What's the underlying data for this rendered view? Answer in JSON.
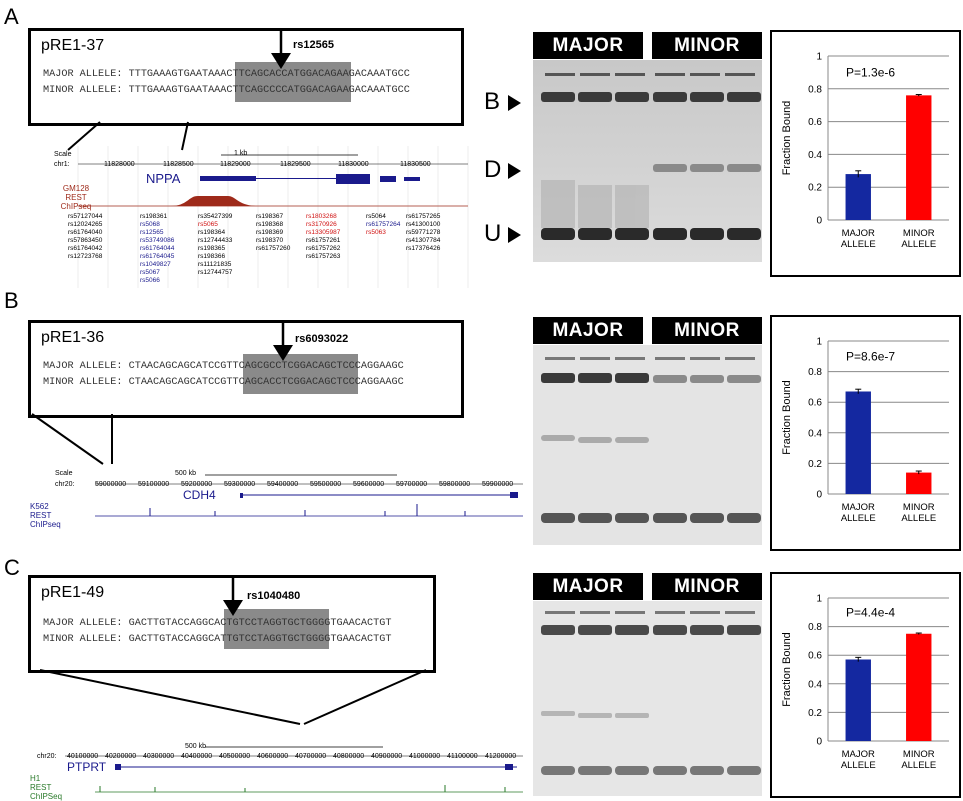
{
  "panels": [
    {
      "letter": "A",
      "region": "pRE1-37",
      "snp": "rs12565",
      "major_prefix": "MAJOR ALLELE: ",
      "minor_prefix": "MINOR ALLELE: ",
      "major_seq": "TTTGAAAGTGAATAAACTTCAGCACCATGGACAGAAGACAAATGCC",
      "minor_seq": "TTTGAAAGTGAATAAACTTCAGCCCCATGGACAGAAGACAAATGCC",
      "gene": "NPPA",
      "browser": {
        "scale_label": "Scale",
        "chrom": "chr1:",
        "scale_bar": "1 kb",
        "ticks": [
          "11828000",
          "11828500",
          "11829000",
          "11829500",
          "11830000",
          "11830500"
        ],
        "track_label": [
          "GM128",
          "REST",
          "ChIPseq"
        ],
        "snp_cols": [
          [
            "rs57127044",
            "rs12024265",
            "rs61764040",
            "rs57863450",
            "rs61764042",
            "rs12723768"
          ],
          [
            "rs198361",
            "rs5068",
            "rs12565",
            "rs53749086",
            "rs61764044",
            "rs61764045",
            "rs1049827",
            "rs5067",
            "rs5066"
          ],
          [
            "rs35427399",
            "rs5065",
            "rs198364",
            "rs12744433",
            "rs198365",
            "rs198366",
            "rs11121835",
            "rs12744757"
          ],
          [
            "rs198367",
            "rs198368",
            "rs198369",
            "rs198370",
            "rs61757260"
          ],
          [
            "rs1803268",
            "rs3170926",
            "rs13305987",
            "rs61757261",
            "rs61757262",
            "rs61757263"
          ],
          [
            "rs5064",
            "rs61757264",
            "rs5063"
          ],
          [
            "rs61757265",
            "rs41300100",
            "rs59771278",
            "rs41307784",
            "rs17376426"
          ]
        ]
      },
      "gel": {
        "major_label": "MAJOR",
        "minor_label": "MINOR",
        "band_labels": [
          "B",
          "D",
          "U"
        ]
      },
      "chart_data": {
        "type": "bar",
        "categories": [
          "MAJOR\nALLELE",
          "MINOR\nALLELE"
        ],
        "values": [
          0.28,
          0.76
        ],
        "errors": [
          0.02,
          0.005
        ],
        "colors": [
          "#1428a0",
          "#ff0000"
        ],
        "ylabel": "Fraction Bound",
        "ylim": [
          0,
          1
        ],
        "yticks": [
          0,
          0.2,
          0.4,
          0.6,
          0.8,
          1
        ],
        "annotation": "P=1.3e-6",
        "grid": true
      }
    },
    {
      "letter": "B",
      "region": "pRE1-36",
      "snp": "rs6093022",
      "major_prefix": "MAJOR ALLELE: ",
      "minor_prefix": "MINOR ALLELE: ",
      "major_seq": "CTAACAGCAGCATCCGTTCAGCGCCTCGGACAGCTCCCAGGAAGC",
      "minor_seq": "CTAACAGCAGCATCCGTTCAGCACCTCGGACAGCTCCCAGGAAGC",
      "gene": "CDH4",
      "browser": {
        "scale_label": "Scale",
        "chrom": "chr20:",
        "scale_bar": "500 kb",
        "ticks": [
          "59000000",
          "59100000",
          "59200000",
          "59300000",
          "59400000",
          "59500000",
          "59600000",
          "59700000",
          "59800000",
          "59900000"
        ],
        "track_label": [
          "K562",
          "REST",
          "ChIPseq"
        ]
      },
      "gel": {
        "major_label": "MAJOR",
        "minor_label": "MINOR"
      },
      "chart_data": {
        "type": "bar",
        "categories": [
          "MAJOR\nALLELE",
          "MINOR\nALLELE"
        ],
        "values": [
          0.67,
          0.14
        ],
        "errors": [
          0.015,
          0.01
        ],
        "colors": [
          "#1428a0",
          "#ff0000"
        ],
        "ylabel": "Fraction Bound",
        "ylim": [
          0,
          1
        ],
        "yticks": [
          0,
          0.2,
          0.4,
          0.6,
          0.8,
          1
        ],
        "annotation": "P=8.6e-7",
        "grid": true
      }
    },
    {
      "letter": "C",
      "region": "pRE1-49",
      "snp": "rs1040480",
      "major_prefix": "MAJOR ALLELE: ",
      "minor_prefix": "MINOR ALLELE: ",
      "major_seq": "GACTTGTACCAGGCACTGTCCTAGGTGCTGGGGTGAACACTGT",
      "minor_seq": "GACTTGTACCAGGCATTGTCCTAGGTGCTGGGGTGAACACTGT",
      "gene": "PTPRT",
      "browser": {
        "chrom": "chr20:",
        "scale_bar": "500 kb",
        "ticks": [
          "40100000",
          "40200000",
          "40300000",
          "40400000",
          "40500000",
          "40600000",
          "40700000",
          "40800000",
          "40900000",
          "41000000",
          "41100000",
          "41200000"
        ],
        "track_label": [
          "H1",
          "REST",
          "ChIPSeq"
        ]
      },
      "gel": {
        "major_label": "MAJOR",
        "minor_label": "MINOR"
      },
      "chart_data": {
        "type": "bar",
        "categories": [
          "MAJOR\nALLELE",
          "MINOR\nALLELE"
        ],
        "values": [
          0.57,
          0.75
        ],
        "errors": [
          0.015,
          0.005
        ],
        "colors": [
          "#1428a0",
          "#ff0000"
        ],
        "ylabel": "Fraction Bound",
        "ylim": [
          0,
          1
        ],
        "yticks": [
          0,
          0.2,
          0.4,
          0.6,
          0.8,
          1
        ],
        "annotation": "P=4.4e-4",
        "grid": true
      }
    }
  ]
}
